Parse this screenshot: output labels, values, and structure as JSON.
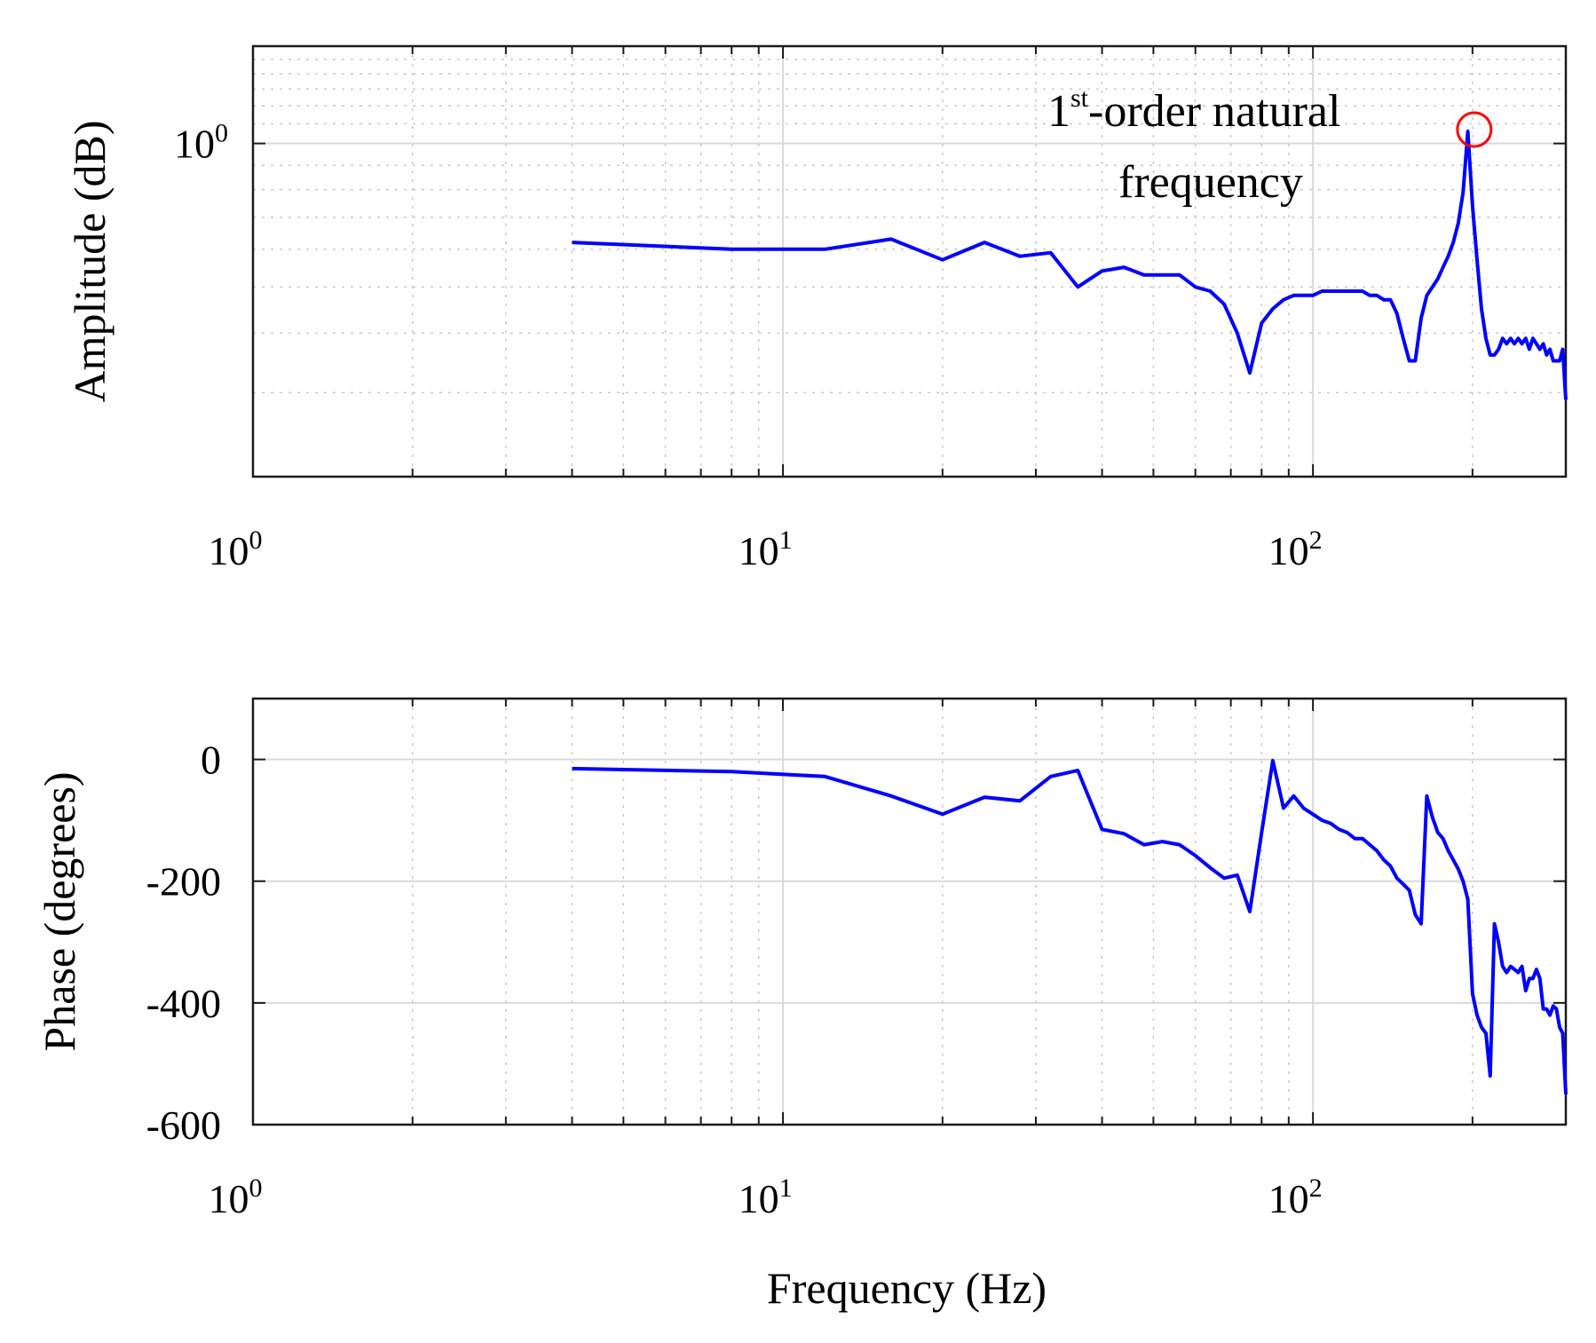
{
  "colors": {
    "curve": "#0000ff",
    "marker": "#ff0000",
    "axis": "#1a1a1a"
  },
  "chart_data": [
    {
      "type": "line",
      "name": "magnitude",
      "xlabel": "",
      "ylabel": "Amplitude (dB)",
      "xscale": "log",
      "yscale": "log",
      "xlim": [
        1,
        300
      ],
      "ylim": [
        0.2,
        1.6
      ],
      "grid": true,
      "xticks": [
        {
          "base": "10",
          "exp": "0"
        },
        {
          "base": "10",
          "exp": "1"
        },
        {
          "base": "10",
          "exp": "2"
        }
      ],
      "yticks": [
        {
          "base": "10",
          "exp": "0"
        }
      ],
      "annotation": {
        "line1_pre": "1",
        "line1_sup": "st",
        "line1_post": "-order natural",
        "line2": "frequency",
        "x": 200,
        "y": 1.06
      },
      "x": [
        4,
        8,
        12,
        16,
        20,
        24,
        28,
        32,
        36,
        40,
        44,
        48,
        52,
        56,
        60,
        64,
        68,
        72,
        76,
        80,
        84,
        88,
        92,
        96,
        100,
        104,
        108,
        112,
        116,
        120,
        124,
        128,
        132,
        136,
        140,
        144,
        148,
        152,
        156,
        160,
        164,
        168,
        172,
        176,
        180,
        184,
        188,
        192,
        196,
        200,
        204,
        208,
        212,
        216,
        220,
        224,
        228,
        232,
        236,
        240,
        244,
        248,
        252,
        256,
        260,
        264,
        268,
        272,
        276,
        280,
        284,
        288,
        292,
        296,
        300
      ],
      "y": [
        0.62,
        0.6,
        0.6,
        0.63,
        0.57,
        0.62,
        0.58,
        0.59,
        0.5,
        0.54,
        0.55,
        0.53,
        0.53,
        0.53,
        0.5,
        0.49,
        0.46,
        0.4,
        0.33,
        0.42,
        0.45,
        0.47,
        0.48,
        0.48,
        0.48,
        0.49,
        0.49,
        0.49,
        0.49,
        0.49,
        0.49,
        0.48,
        0.48,
        0.47,
        0.47,
        0.44,
        0.39,
        0.35,
        0.35,
        0.43,
        0.48,
        0.5,
        0.52,
        0.55,
        0.58,
        0.62,
        0.68,
        0.79,
        1.06,
        0.74,
        0.57,
        0.45,
        0.39,
        0.36,
        0.36,
        0.37,
        0.39,
        0.38,
        0.39,
        0.38,
        0.39,
        0.38,
        0.39,
        0.37,
        0.39,
        0.38,
        0.37,
        0.38,
        0.36,
        0.37,
        0.35,
        0.35,
        0.35,
        0.37,
        0.29
      ]
    },
    {
      "type": "line",
      "name": "phase",
      "xlabel": "Frequency (Hz)",
      "ylabel": "Phase (degrees)",
      "xscale": "log",
      "yscale": "linear",
      "xlim": [
        1,
        300
      ],
      "ylim": [
        -600,
        100
      ],
      "grid": true,
      "xticks": [
        {
          "base": "10",
          "exp": "0"
        },
        {
          "base": "10",
          "exp": "1"
        },
        {
          "base": "10",
          "exp": "2"
        }
      ],
      "yticks": [
        "0",
        "-200",
        "-400",
        "-600"
      ],
      "ytick_values": [
        0,
        -200,
        -400,
        -600
      ],
      "x": [
        4,
        8,
        12,
        16,
        20,
        24,
        28,
        32,
        36,
        40,
        44,
        48,
        52,
        56,
        60,
        64,
        68,
        72,
        76,
        80,
        84,
        88,
        92,
        96,
        100,
        104,
        108,
        112,
        116,
        120,
        124,
        128,
        132,
        136,
        140,
        144,
        148,
        152,
        156,
        160,
        164,
        168,
        172,
        176,
        180,
        184,
        188,
        192,
        196,
        200,
        204,
        208,
        212,
        216,
        220,
        224,
        228,
        232,
        236,
        240,
        244,
        248,
        252,
        256,
        260,
        264,
        268,
        272,
        276,
        280,
        284,
        288,
        292,
        296,
        300
      ],
      "y": [
        -15,
        -20,
        -28,
        -60,
        -90,
        -62,
        -68,
        -28,
        -18,
        -115,
        -122,
        -140,
        -135,
        -140,
        -158,
        -178,
        -195,
        -190,
        -250,
        -120,
        -2,
        -80,
        -60,
        -80,
        -90,
        -100,
        -105,
        -115,
        -120,
        -130,
        -130,
        -140,
        -150,
        -165,
        -175,
        -195,
        -205,
        -215,
        -255,
        -270,
        -60,
        -95,
        -120,
        -130,
        -150,
        -165,
        -180,
        -200,
        -230,
        -385,
        -420,
        -440,
        -450,
        -520,
        -270,
        -300,
        -340,
        -350,
        -340,
        -345,
        -350,
        -340,
        -380,
        -360,
        -360,
        -345,
        -360,
        -410,
        -410,
        -420,
        -405,
        -410,
        -440,
        -450,
        -550
      ]
    }
  ]
}
